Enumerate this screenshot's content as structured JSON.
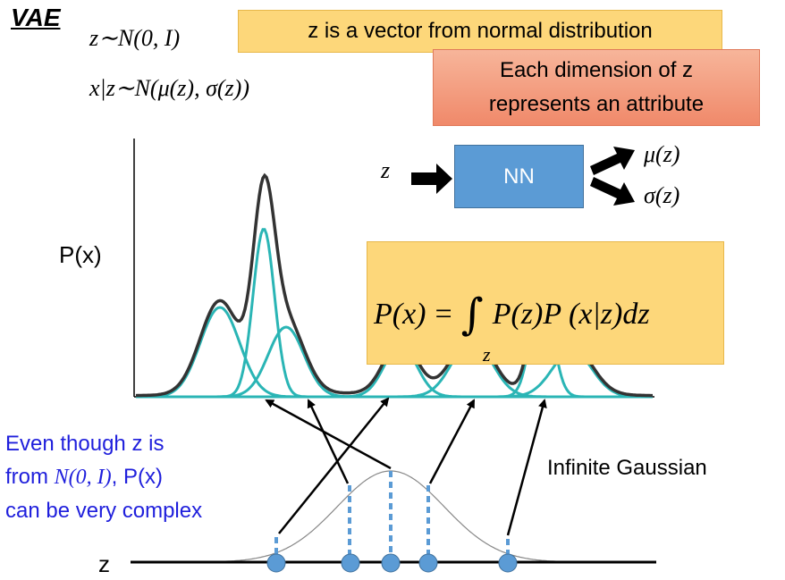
{
  "title": "VAE",
  "eq_z": "z∼N(0, I)",
  "eq_x": "x|z∼N(μ(z), σ(z))",
  "box_vector": "z is a vector from normal distribution",
  "box_attr_line1": "Each dimension of z",
  "box_attr_line2": "represents an attribute",
  "nn": {
    "input": "z",
    "label": "NN",
    "out_mu": "μ(z)",
    "out_sigma": "σ(z)"
  },
  "y_label": "P(x)",
  "formula": {
    "lhs": "P(x)",
    "eq": "=",
    "integral": "∫",
    "rhs": "P(z)P (x|z)dz",
    "sub": "z"
  },
  "note_line1": "Even though z is",
  "note_line2_a": "from ",
  "note_line2_math": "N(0, I)",
  "note_line2_b": ", P(x)",
  "note_line3": "can be very complex",
  "infinite_label": "Infinite Gaussian",
  "z_axis_label": "z",
  "colors": {
    "gaussians": "#2ab5b5",
    "mixture": "#333333",
    "points": "#5b9bd5",
    "dash": "#5b9bd5",
    "yellow": "#fdd77a",
    "nn": "#5b9bd5",
    "note": "#1f1fdc"
  },
  "chart_data": {
    "type": "diagram",
    "gaussian_components": 6,
    "sample_points": 5
  }
}
